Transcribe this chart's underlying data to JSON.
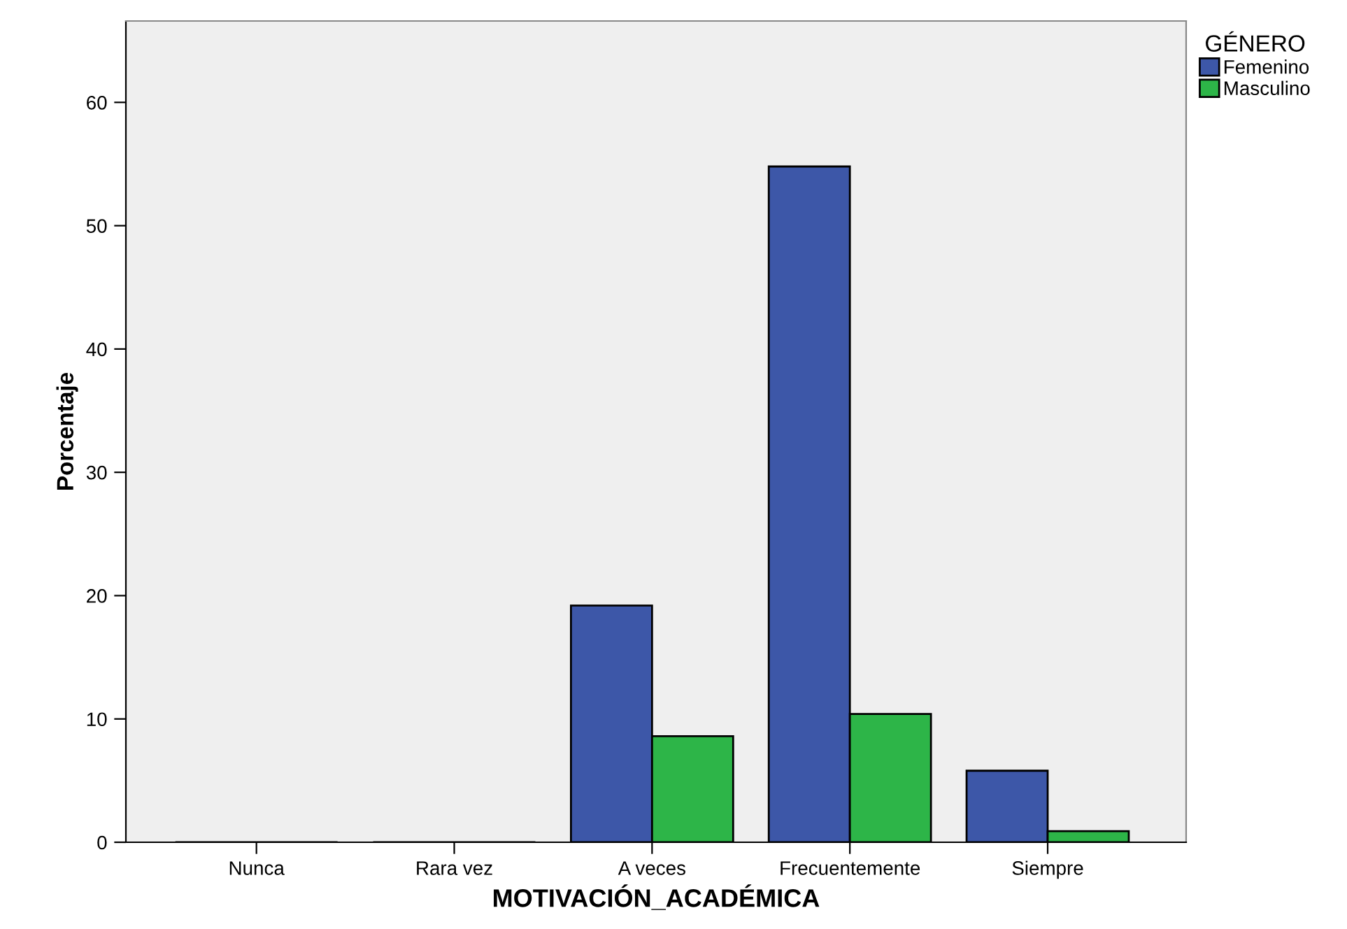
{
  "chart_data": {
    "type": "bar",
    "xlabel": "MOTIVACIÓN_ACADÉMICA",
    "ylabel": "Porcentaje",
    "legend_title": "GÉNERO",
    "legend": "top right",
    "categories": [
      "Nunca",
      "Rara vez",
      "A veces",
      "Frecuentemente",
      "Siempre"
    ],
    "series": [
      {
        "name": "Femenino",
        "color": "#3d57a8",
        "values": [
          0,
          0,
          19.2,
          54.8,
          5.8
        ]
      },
      {
        "name": "Masculino",
        "color": "#2db548",
        "values": [
          0,
          0,
          8.6,
          10.4,
          0.9
        ]
      }
    ],
    "ylim": [
      0,
      66.6
    ],
    "yticks": [
      0,
      10,
      20,
      30,
      40,
      50,
      60
    ],
    "grid": false
  }
}
